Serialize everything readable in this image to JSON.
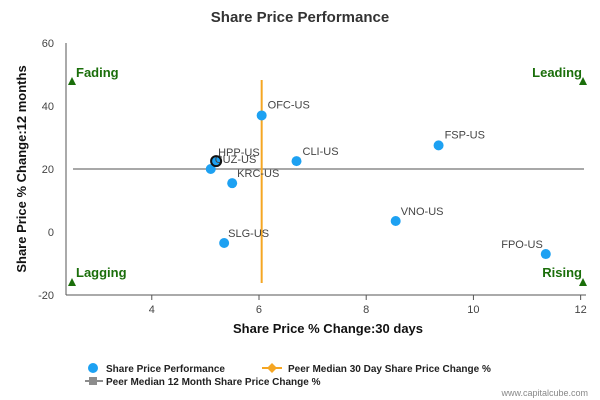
{
  "chart_data": {
    "type": "scatter",
    "title": "Share Price Performance",
    "xlabel": "Share Price % Change:30 days",
    "ylabel": "Share Price % Change:12 months",
    "xlim": [
      2.4,
      12.1
    ],
    "ylim": [
      -20,
      60
    ],
    "xticks": [
      4,
      6,
      8,
      10,
      12
    ],
    "yticks": [
      -20,
      0,
      20,
      40,
      60
    ],
    "grid": false,
    "legend_position": "bottom-left",
    "points": [
      {
        "label": "OFC-US",
        "x": 6.05,
        "y": 37
      },
      {
        "label": "FSP-US",
        "x": 9.35,
        "y": 27.5
      },
      {
        "label": "CLI-US",
        "x": 6.7,
        "y": 22.5
      },
      {
        "label": "HPP-US",
        "x": 5.2,
        "y": 22.5
      },
      {
        "label": "CUZ-US",
        "x": 5.1,
        "y": 20
      },
      {
        "label": "KRC-US",
        "x": 5.5,
        "y": 15.5
      },
      {
        "label": "VNO-US",
        "x": 8.55,
        "y": 3.5
      },
      {
        "label": "SLG-US",
        "x": 5.35,
        "y": -3.5
      },
      {
        "label": "FPO-US",
        "x": 11.35,
        "y": -7
      }
    ],
    "highlight": {
      "label": "HPP-US",
      "x": 5.2,
      "y": 22.5
    },
    "peer_median_30d": 6.05,
    "peer_median_12m": 20,
    "quadrants": {
      "top_left": "Fading",
      "top_right": "Leading",
      "bottom_left": "Lagging",
      "bottom_right": "Rising"
    },
    "legend": [
      {
        "name": "Share Price Performance",
        "color": "#1da1f2",
        "marker": "circle"
      },
      {
        "name": "Peer Median 30 Day Share Price Change %",
        "color": "#f5a623",
        "marker": "diamond"
      },
      {
        "name": "Peer Median 12 Month Share Price Change %",
        "color": "#8c8c8c",
        "marker": "square"
      }
    ],
    "colors": {
      "point": "#1da1f2",
      "vline": "#f5a623",
      "hline": "#8c8c8c",
      "quad": "#1a6e0a",
      "axis": "#555555"
    }
  },
  "watermark": "www.capitalcube.com"
}
